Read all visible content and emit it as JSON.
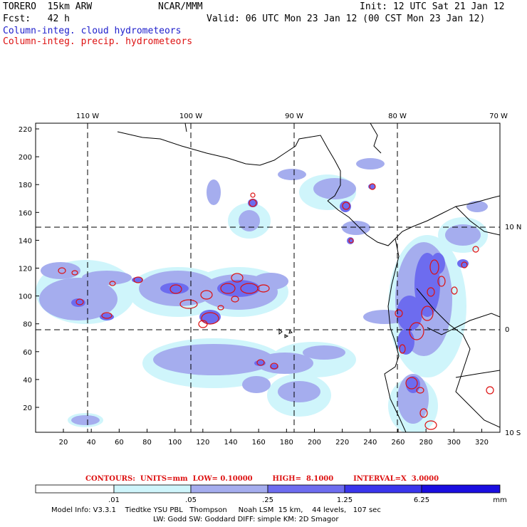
{
  "header": {
    "model": "TORERO  15km ARW",
    "center": "NCAR/MMM",
    "init": "Init: 12 UTC Sat 21 Jan 12",
    "fcst": "Fcst:   42 h",
    "valid": "Valid: 06 UTC Mon 23 Jan 12 (00 CST Mon 23 Jan 12)",
    "field1": "Column-integ. cloud hydrometeors",
    "field2": "Column-integ. precip. hydrometeors"
  },
  "map": {
    "lon_labels": [
      "110 W",
      "100 W",
      "90 W",
      "80 W",
      "70 W"
    ],
    "lat_labels": [
      "10 N",
      "0",
      "10 S"
    ],
    "y_ticks": [
      "220",
      "200",
      "180",
      "160",
      "140",
      "120",
      "100",
      "80",
      "60",
      "40",
      "20"
    ],
    "x_ticks": [
      "20",
      "40",
      "60",
      "80",
      "100",
      "120",
      "140",
      "160",
      "180",
      "200",
      "220",
      "240",
      "260",
      "280",
      "300",
      "320"
    ]
  },
  "contours_line": "CONTOURS:  UNITS=mm  LOW= 0.10000        HIGH=  8.1000        INTERVAL=X  3.0000",
  "colorbar": {
    "levels": [
      ".01",
      ".05",
      ".25",
      "1.25",
      "6.25"
    ],
    "unit": "mm",
    "colors": [
      "#ffffff",
      "#cff5fb",
      "#a5adee",
      "#6d6cef",
      "#3a35ec",
      "#1a0ee0"
    ]
  },
  "footer": {
    "line1": "Model Info: V3.3.1    Tiedtke YSU PBL   Thompson     Noah LSM  15 km,    44 levels,   107 sec",
    "line2": "LW: Godd SW: Goddard DIFF: simple KM: 2D Smagor"
  },
  "colors": {
    "cloud_light": "#cff5fb",
    "cloud_mid": "#a5adee",
    "cloud_dark": "#6d6cef",
    "precip": "#dd1111",
    "coast": "#000000"
  }
}
